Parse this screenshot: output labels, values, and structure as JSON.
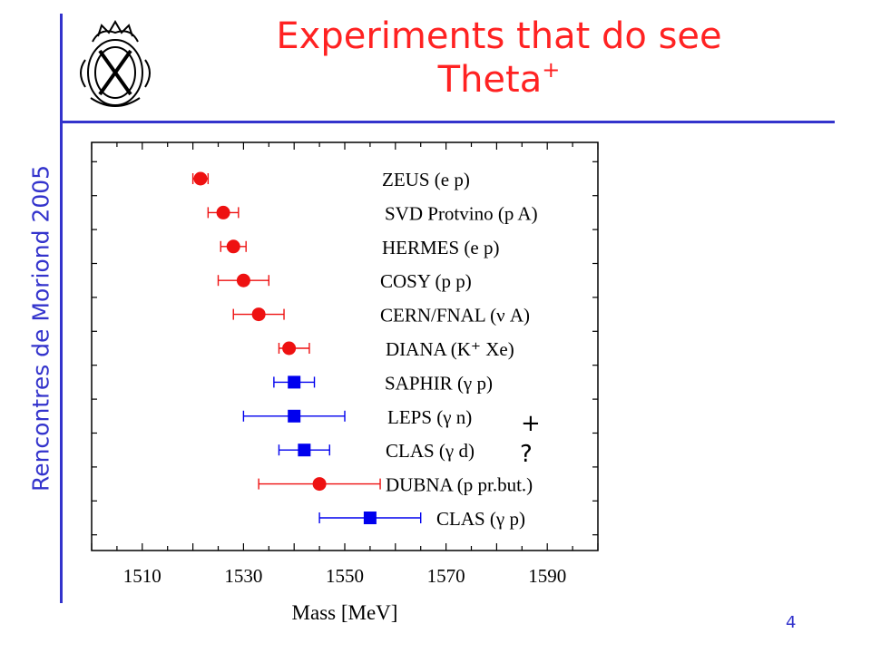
{
  "sidebar": {
    "conference_label": "Rencontres de Moriond 2005"
  },
  "header": {
    "title_line1": "Experiments that do see",
    "title_line2": "Theta",
    "title_sup": "+"
  },
  "footer": {
    "page_number": "4"
  },
  "annotations": {
    "plus_sign": "+",
    "question_mark": "?"
  },
  "colors": {
    "accent": "#3333cc",
    "title": "#ff2222",
    "circle_marker": "#ee1111",
    "square_marker": "#0000ee"
  },
  "chart_data": {
    "type": "scatter",
    "title": "",
    "xlabel": "Mass [MeV]",
    "ylabel": "",
    "xlim": [
      1500,
      1600
    ],
    "x_ticks": [
      1510,
      1530,
      1550,
      1570,
      1590
    ],
    "grid": false,
    "points": [
      {
        "label": "ZEUS (e p)",
        "mass": 1521.5,
        "err_low": 1.5,
        "err_high": 1.5,
        "marker": "circle"
      },
      {
        "label": "SVD Protvino (p A)",
        "mass": 1526,
        "err_low": 3,
        "err_high": 3,
        "marker": "circle"
      },
      {
        "label": "HERMES (e p)",
        "mass": 1528,
        "err_low": 2.5,
        "err_high": 2.5,
        "marker": "circle"
      },
      {
        "label": "COSY (p p)",
        "mass": 1530,
        "err_low": 5,
        "err_high": 5,
        "marker": "circle"
      },
      {
        "label": "CERN/FNAL (ν A)",
        "mass": 1533,
        "err_low": 5,
        "err_high": 5,
        "marker": "circle"
      },
      {
        "label": "DIANA (K⁺ Xe)",
        "mass": 1539,
        "err_low": 2,
        "err_high": 4,
        "marker": "circle"
      },
      {
        "label": "SAPHIR (γ p)",
        "mass": 1540,
        "err_low": 4,
        "err_high": 4,
        "marker": "square"
      },
      {
        "label": "LEPS (γ n)",
        "mass": 1540,
        "err_low": 10,
        "err_high": 10,
        "marker": "square"
      },
      {
        "label": "CLAS (γ d)",
        "mass": 1542,
        "err_low": 5,
        "err_high": 5,
        "marker": "square"
      },
      {
        "label": "DUBNA (p pr.but.)",
        "mass": 1545,
        "err_low": 12,
        "err_high": 12,
        "marker": "circle"
      },
      {
        "label": "CLAS (γ p)",
        "mass": 1555,
        "err_low": 10,
        "err_high": 10,
        "marker": "square"
      }
    ]
  }
}
